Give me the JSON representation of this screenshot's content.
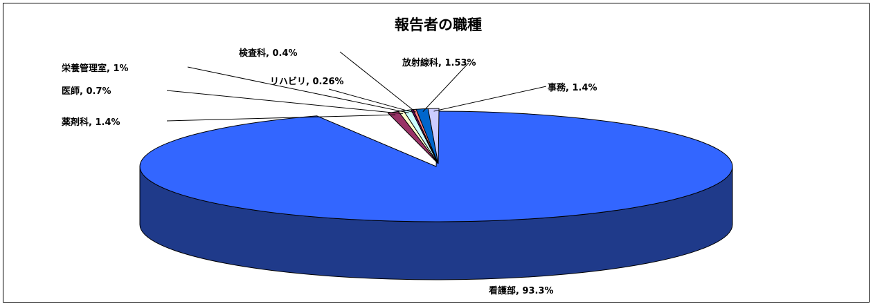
{
  "chart_data": {
    "type": "pie",
    "title": "報告者の職種",
    "slices": [
      {
        "name": "看護部",
        "value": 93.3,
        "label": "看護部, 93.3%",
        "color": "#3366ff",
        "side": "#1f3a8a"
      },
      {
        "name": "薬剤科",
        "value": 1.4,
        "label": "薬剤科, 1.4%",
        "color": "#993366",
        "side": "#5c1f3d"
      },
      {
        "name": "医師",
        "value": 0.7,
        "label": "医師, 0.7%",
        "color": "#ffffcc",
        "side": "#b3b38f"
      },
      {
        "name": "栄養管理室",
        "value": 1,
        "label": "栄養管理室, 1%",
        "color": "#ccffff",
        "side": "#8fb3b3"
      },
      {
        "name": "リハビリ",
        "value": 0.26,
        "label": "リハビリ, 0.26%",
        "color": "#660066",
        "side": "#3d003d"
      },
      {
        "name": "検査科",
        "value": 0.4,
        "label": "検査科, 0.4%",
        "color": "#ff8080",
        "side": "#b35a5a"
      },
      {
        "name": "放射線科",
        "value": 1.53,
        "label": "放射線科, 1.53%",
        "color": "#0066cc",
        "side": "#003d7a"
      },
      {
        "name": "事務",
        "value": 1.4,
        "label": "事務, 1.4%",
        "color": "#ccccff",
        "side": "#8f8fb3"
      }
    ]
  }
}
